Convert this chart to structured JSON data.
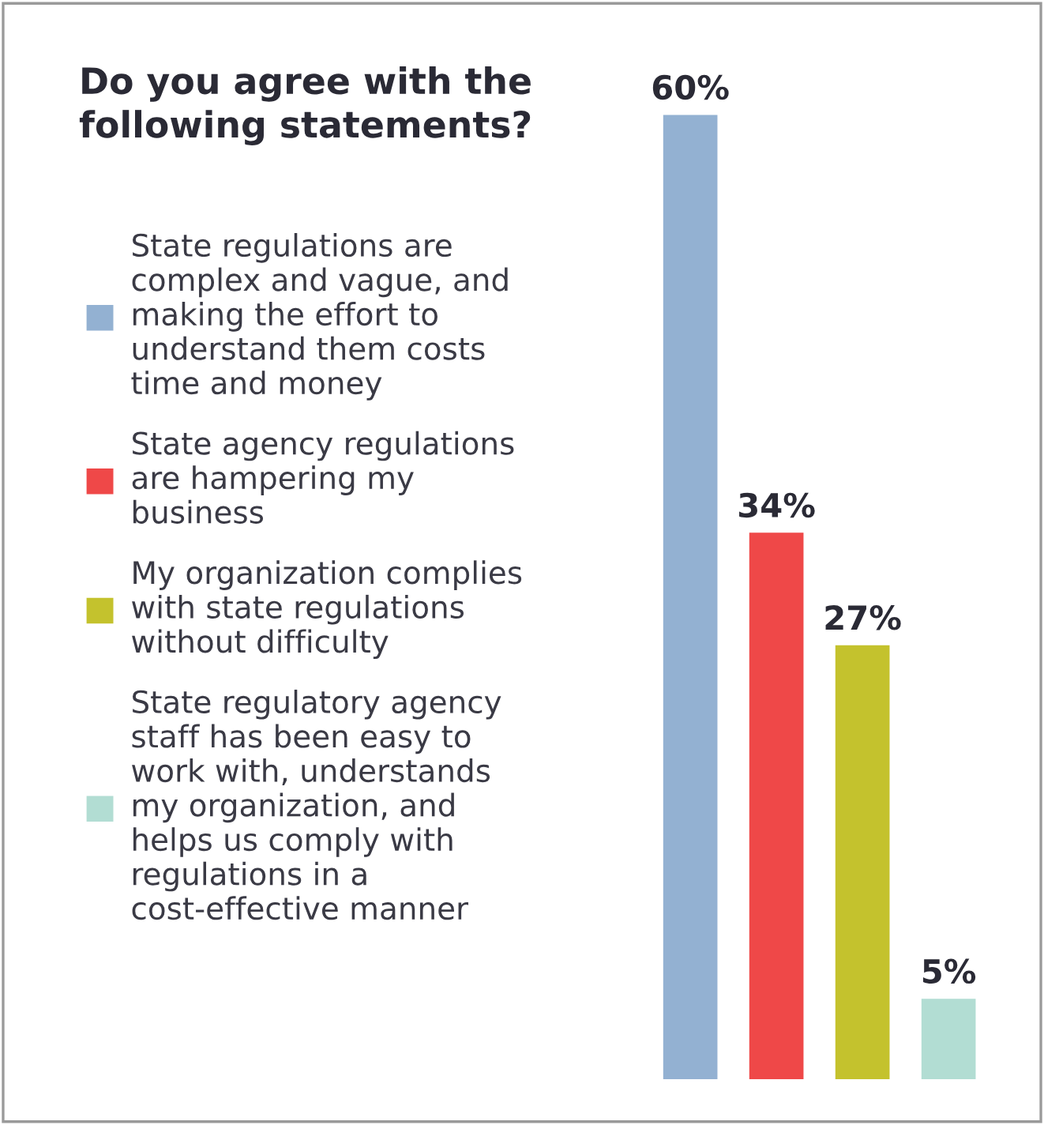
{
  "chart_data": {
    "type": "bar",
    "title": "Do you agree with the following statements?",
    "categories": [
      null,
      null,
      null,
      null
    ],
    "stacked": true,
    "series": [
      {
        "name": "State regulations are complex and vague, and making the effort to understand them costs time and money",
        "color": "#93b1d2",
        "values": [
          60,
          null,
          null,
          null
        ],
        "value_labels": [
          "60%",
          null,
          null,
          null
        ]
      },
      {
        "name": "State agency regulations are hampering my business",
        "color": "#ef4848",
        "values": [
          null,
          34,
          null,
          null
        ],
        "value_labels": [
          null,
          "34%",
          null,
          null
        ]
      },
      {
        "name": "My organization complies with state regulations without difficulty",
        "color": "#c4c22d",
        "values": [
          null,
          null,
          27,
          null
        ],
        "value_labels": [
          null,
          null,
          "27%",
          null
        ]
      },
      {
        "name": "State regulatory agency staff has been easy to work with, understands my organization, and helps us comply with regulations in a cost-effective manner",
        "color": "#b2ddd3",
        "values": [
          null,
          null,
          null,
          5
        ],
        "value_labels": [
          null,
          null,
          null,
          "5%"
        ]
      }
    ],
    "grid": false,
    "legend": "left"
  }
}
